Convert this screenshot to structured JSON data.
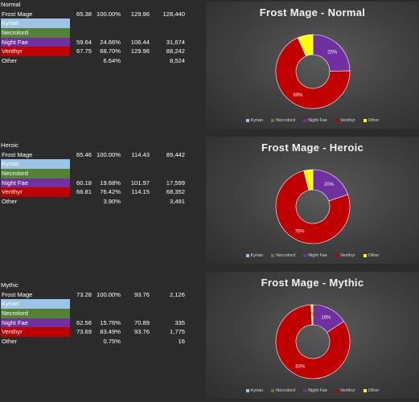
{
  "colors": {
    "kyrian": "#9dc3e6",
    "necrolord": "#548235",
    "night_fae": "#7030a0",
    "venthyr": "#c00000",
    "other": "#ffff00"
  },
  "sections": [
    {
      "difficulty": "Normal",
      "rows": [
        {
          "name": "Frost Mage",
          "v1": "65.38",
          "v2": "100.00%",
          "v3": "129.96",
          "v4": "128,440"
        },
        {
          "name": "Kyrian",
          "v1": "",
          "v2": "",
          "v3": "",
          "v4": ""
        },
        {
          "name": "Necrolord",
          "v1": "",
          "v2": "",
          "v3": "",
          "v4": ""
        },
        {
          "name": "Night Fae",
          "v1": "59.64",
          "v2": "24.66%",
          "v3": "106.44",
          "v4": "31,674"
        },
        {
          "name": "Venthyr",
          "v1": "67.75",
          "v2": "68.70%",
          "v3": "129.96",
          "v4": "88,242"
        },
        {
          "name": "Other",
          "v1": "",
          "v2": "6.64%",
          "v3": "",
          "v4": "8,524"
        }
      ]
    },
    {
      "difficulty": "Heroic",
      "rows": [
        {
          "name": "Frost Mage",
          "v1": "65.46",
          "v2": "100.00%",
          "v3": "114.43",
          "v4": "89,442"
        },
        {
          "name": "Kyrian",
          "v1": "",
          "v2": "",
          "v3": "",
          "v4": ""
        },
        {
          "name": "Necrolord",
          "v1": "",
          "v2": "",
          "v3": "",
          "v4": ""
        },
        {
          "name": "Night Fae",
          "v1": "60.18",
          "v2": "19.68%",
          "v3": "101.97",
          "v4": "17,599"
        },
        {
          "name": "Venthyr",
          "v1": "66.81",
          "v2": "76.42%",
          "v3": "114.15",
          "v4": "68,352"
        },
        {
          "name": "Other",
          "v1": "",
          "v2": "3.90%",
          "v3": "",
          "v4": "3,491"
        }
      ]
    },
    {
      "difficulty": "Mythic",
      "rows": [
        {
          "name": "Frost Mage",
          "v1": "73.28",
          "v2": "100.00%",
          "v3": "93.76",
          "v4": "2,126"
        },
        {
          "name": "Kyrian",
          "v1": "",
          "v2": "",
          "v3": "",
          "v4": ""
        },
        {
          "name": "Necrolord",
          "v1": "",
          "v2": "",
          "v3": "",
          "v4": ""
        },
        {
          "name": "Night Fae",
          "v1": "62.56",
          "v2": "15.76%",
          "v3": "70.89",
          "v4": "335"
        },
        {
          "name": "Venthyr",
          "v1": "73.69",
          "v2": "83.49%",
          "v3": "93.76",
          "v4": "1,775"
        },
        {
          "name": "Other",
          "v1": "",
          "v2": "0.75%",
          "v3": "",
          "v4": "16"
        }
      ]
    }
  ],
  "chart_data": [
    {
      "type": "pie",
      "title": "Frost Mage - Normal",
      "donut": true,
      "legend_position": "bottom",
      "series": [
        {
          "name": "Kyrian",
          "value": 0,
          "label": ""
        },
        {
          "name": "Necrolord",
          "value": 0,
          "label": ""
        },
        {
          "name": "Night Fae",
          "value": 24.66,
          "label": "25%"
        },
        {
          "name": "Venthyr",
          "value": 68.7,
          "label": "69%"
        },
        {
          "name": "Other",
          "value": 6.64,
          "label": ""
        }
      ]
    },
    {
      "type": "pie",
      "title": "Frost Mage - Heroic",
      "donut": true,
      "legend_position": "bottom",
      "series": [
        {
          "name": "Kyrian",
          "value": 0,
          "label": ""
        },
        {
          "name": "Necrolord",
          "value": 0,
          "label": ""
        },
        {
          "name": "Night Fae",
          "value": 19.68,
          "label": "20%"
        },
        {
          "name": "Venthyr",
          "value": 76.42,
          "label": "76%"
        },
        {
          "name": "Other",
          "value": 3.9,
          "label": ""
        }
      ]
    },
    {
      "type": "pie",
      "title": "Frost Mage - Mythic",
      "donut": true,
      "legend_position": "bottom",
      "series": [
        {
          "name": "Kyrian",
          "value": 0,
          "label": ""
        },
        {
          "name": "Necrolord",
          "value": 0,
          "label": ""
        },
        {
          "name": "Night Fae",
          "value": 15.76,
          "label": "16%"
        },
        {
          "name": "Venthyr",
          "value": 83.49,
          "label": "83%"
        },
        {
          "name": "Other",
          "value": 0.75,
          "label": "1%"
        }
      ]
    }
  ]
}
